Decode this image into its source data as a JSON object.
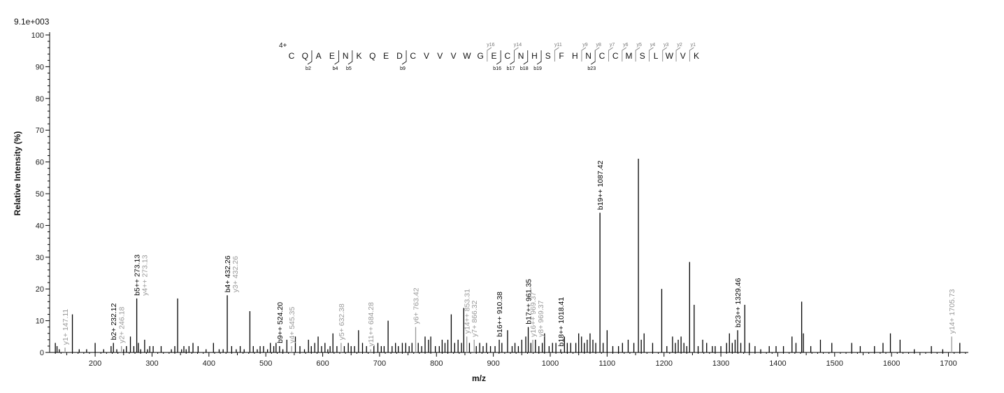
{
  "chart_data": {
    "type": "bar",
    "scale_label": "9.1e+003",
    "xlabel": "m/z",
    "ylabel": "Relative   Intensity (%)",
    "xlim": [
      120,
      1735
    ],
    "ylim": [
      0,
      100
    ],
    "x_ticks": [
      200,
      300,
      400,
      500,
      600,
      700,
      800,
      900,
      1000,
      1100,
      1200,
      1300,
      1400,
      1500,
      1600,
      1700
    ],
    "y_ticks": [
      0,
      10,
      20,
      30,
      40,
      50,
      60,
      70,
      80,
      90,
      100
    ],
    "colors": {
      "annotated_b": "#000000",
      "annotated_y": "#999999",
      "unannotated": "#000000"
    },
    "peaks": [
      [
        130,
        3
      ],
      [
        133,
        2
      ],
      [
        137,
        1
      ],
      [
        147.11,
        1.5
      ],
      [
        160,
        12
      ],
      [
        172,
        1
      ],
      [
        185,
        1
      ],
      [
        200,
        3
      ],
      [
        215,
        1
      ],
      [
        228,
        2
      ],
      [
        232.12,
        3
      ],
      [
        238,
        1
      ],
      [
        246.18,
        2
      ],
      [
        250,
        1
      ],
      [
        255,
        2
      ],
      [
        262,
        5
      ],
      [
        268,
        2
      ],
      [
        273.13,
        17
      ],
      [
        276,
        3
      ],
      [
        280,
        1
      ],
      [
        287,
        4
      ],
      [
        292,
        1
      ],
      [
        296,
        2
      ],
      [
        302,
        2
      ],
      [
        316,
        2
      ],
      [
        334,
        1
      ],
      [
        340,
        2
      ],
      [
        345,
        17
      ],
      [
        352,
        1
      ],
      [
        356,
        2
      ],
      [
        360,
        1
      ],
      [
        365,
        2
      ],
      [
        372,
        3
      ],
      [
        381,
        2
      ],
      [
        395,
        1
      ],
      [
        408,
        3
      ],
      [
        418,
        1
      ],
      [
        425,
        1
      ],
      [
        432.26,
        18
      ],
      [
        440,
        2
      ],
      [
        448,
        1
      ],
      [
        455,
        2
      ],
      [
        462,
        1
      ],
      [
        472,
        13
      ],
      [
        478,
        2
      ],
      [
        485,
        1
      ],
      [
        490,
        2
      ],
      [
        496,
        2
      ],
      [
        503,
        1
      ],
      [
        508,
        3
      ],
      [
        514,
        2
      ],
      [
        518,
        3
      ],
      [
        524.2,
        2
      ],
      [
        530,
        1
      ],
      [
        537,
        4
      ],
      [
        545.35,
        2
      ],
      [
        552,
        5
      ],
      [
        560,
        2
      ],
      [
        568,
        1
      ],
      [
        575,
        4
      ],
      [
        580,
        2
      ],
      [
        586,
        3
      ],
      [
        592,
        5
      ],
      [
        598,
        2
      ],
      [
        604,
        3
      ],
      [
        609,
        1
      ],
      [
        613,
        2
      ],
      [
        618,
        6
      ],
      [
        625,
        2
      ],
      [
        632.38,
        3
      ],
      [
        638,
        2
      ],
      [
        645,
        3
      ],
      [
        650,
        2
      ],
      [
        656,
        2
      ],
      [
        663,
        7
      ],
      [
        670,
        3
      ],
      [
        677,
        2
      ],
      [
        684.28,
        1
      ],
      [
        690,
        2
      ],
      [
        697,
        3
      ],
      [
        703,
        2
      ],
      [
        708,
        2
      ],
      [
        715,
        10
      ],
      [
        722,
        2
      ],
      [
        728,
        3
      ],
      [
        733,
        2
      ],
      [
        740,
        3
      ],
      [
        746,
        3
      ],
      [
        752,
        2
      ],
      [
        757,
        3
      ],
      [
        763.42,
        8
      ],
      [
        768,
        3
      ],
      [
        774,
        2
      ],
      [
        780,
        5
      ],
      [
        786,
        4
      ],
      [
        790,
        5
      ],
      [
        798,
        2
      ],
      [
        805,
        2
      ],
      [
        810,
        4
      ],
      [
        815,
        3
      ],
      [
        820,
        4
      ],
      [
        826,
        12
      ],
      [
        832,
        3
      ],
      [
        838,
        4
      ],
      [
        844,
        3
      ],
      [
        848,
        14
      ],
      [
        853.31,
        5
      ],
      [
        858,
        3
      ],
      [
        866.32,
        4
      ],
      [
        870,
        2
      ],
      [
        876,
        3
      ],
      [
        882,
        2
      ],
      [
        888,
        3
      ],
      [
        895,
        2
      ],
      [
        903,
        2
      ],
      [
        910.38,
        4
      ],
      [
        915,
        3
      ],
      [
        925,
        7
      ],
      [
        933,
        2
      ],
      [
        938,
        3
      ],
      [
        944,
        2
      ],
      [
        950,
        4
      ],
      [
        957,
        5
      ],
      [
        961.35,
        8
      ],
      [
        966,
        3
      ],
      [
        969.37,
        4
      ],
      [
        974,
        4
      ],
      [
        980,
        2
      ],
      [
        986,
        3
      ],
      [
        990,
        6
      ],
      [
        998,
        2
      ],
      [
        1004,
        3
      ],
      [
        1010,
        3
      ],
      [
        1018.41,
        1
      ],
      [
        1025,
        5
      ],
      [
        1030,
        3
      ],
      [
        1036,
        3
      ],
      [
        1045,
        3
      ],
      [
        1050,
        6
      ],
      [
        1055,
        5
      ],
      [
        1060,
        3
      ],
      [
        1065,
        4
      ],
      [
        1070,
        6
      ],
      [
        1075,
        4
      ],
      [
        1080,
        3
      ],
      [
        1087.42,
        44
      ],
      [
        1093,
        3
      ],
      [
        1100,
        7
      ],
      [
        1110,
        2
      ],
      [
        1120,
        2
      ],
      [
        1127,
        3
      ],
      [
        1137,
        4
      ],
      [
        1147,
        3
      ],
      [
        1155,
        61
      ],
      [
        1160,
        4
      ],
      [
        1165,
        6
      ],
      [
        1180,
        3
      ],
      [
        1196,
        20
      ],
      [
        1205,
        2
      ],
      [
        1215,
        5
      ],
      [
        1220,
        3
      ],
      [
        1225,
        4
      ],
      [
        1230,
        5
      ],
      [
        1235,
        3
      ],
      [
        1240,
        2
      ],
      [
        1245,
        28.5
      ],
      [
        1253,
        15
      ],
      [
        1260,
        2
      ],
      [
        1268,
        4
      ],
      [
        1275,
        3
      ],
      [
        1285,
        2
      ],
      [
        1290,
        2
      ],
      [
        1300,
        2
      ],
      [
        1310,
        3
      ],
      [
        1315,
        6
      ],
      [
        1320,
        3
      ],
      [
        1325,
        4
      ],
      [
        1329.46,
        7
      ],
      [
        1335,
        3
      ],
      [
        1342,
        15
      ],
      [
        1350,
        3
      ],
      [
        1360,
        2
      ],
      [
        1370,
        1
      ],
      [
        1385,
        2
      ],
      [
        1397,
        2
      ],
      [
        1410,
        2
      ],
      [
        1425,
        5
      ],
      [
        1432,
        3
      ],
      [
        1442,
        16
      ],
      [
        1445,
        6
      ],
      [
        1458,
        2
      ],
      [
        1475,
        4
      ],
      [
        1495,
        3
      ],
      [
        1530,
        3
      ],
      [
        1545,
        2
      ],
      [
        1570,
        2
      ],
      [
        1585,
        3
      ],
      [
        1598,
        6
      ],
      [
        1615,
        4
      ],
      [
        1640,
        1
      ],
      [
        1670,
        2
      ],
      [
        1690,
        1
      ],
      [
        1705.73,
        5
      ],
      [
        1720,
        3
      ]
    ],
    "annotations": [
      {
        "label": "y1+ 147.11",
        "mz": 147.11,
        "ion": "y"
      },
      {
        "label": "b2+ 232.12",
        "mz": 232.12,
        "ion": "b"
      },
      {
        "label": "y2+ 246.18",
        "mz": 246.18,
        "ion": "y"
      },
      {
        "label": "b5++ 273.13",
        "mz": 273.13,
        "ion": "b"
      },
      {
        "label": "y4++ 273.13",
        "mz": 273.13,
        "ion": "y"
      },
      {
        "label": "b4+ 432.26",
        "mz": 432.26,
        "ion": "b"
      },
      {
        "label": "y3+ 432.26",
        "mz": 432.26,
        "ion": "y"
      },
      {
        "label": "b9++ 524.20",
        "mz": 524.2,
        "ion": "b"
      },
      {
        "label": "y4+ 545.35",
        "mz": 545.35,
        "ion": "y"
      },
      {
        "label": "y5+ 632.38",
        "mz": 632.38,
        "ion": "y"
      },
      {
        "label": "y11++ 684.28",
        "mz": 684.28,
        "ion": "y"
      },
      {
        "label": "y6+ 763.42",
        "mz": 763.42,
        "ion": "y"
      },
      {
        "label": "y14++ 853.31",
        "mz": 853.31,
        "ion": "y"
      },
      {
        "label": "y7+ 866.32",
        "mz": 866.32,
        "ion": "y"
      },
      {
        "label": "b16++ 910.38",
        "mz": 910.38,
        "ion": "b"
      },
      {
        "label": "b17++ 961.35",
        "mz": 961.35,
        "ion": "b"
      },
      {
        "label": "y16++ 969.37",
        "mz": 969.37,
        "ion": "y"
      },
      {
        "label": "y8+ 969.37",
        "mz": 969.37,
        "ion": "y"
      },
      {
        "label": "b18++ 1018.41",
        "mz": 1018.41,
        "ion": "b"
      },
      {
        "label": "b19++ 1087.42",
        "mz": 1087.42,
        "ion": "b"
      },
      {
        "label": "b23++ 1329.46",
        "mz": 1329.46,
        "ion": "b"
      },
      {
        "label": "y14+ 1705.73",
        "mz": 1705.73,
        "ion": "y"
      }
    ],
    "sequence": {
      "charge": "4+",
      "residues": [
        "C",
        "Q",
        "A",
        "E",
        "N",
        "K",
        "Q",
        "E",
        "D",
        "C",
        "V",
        "V",
        "V",
        "W",
        "G",
        "E",
        "C",
        "N",
        "H",
        "S",
        "F",
        "H",
        "N",
        "C",
        "C",
        "M",
        "S",
        "L",
        "W",
        "V",
        "K"
      ],
      "b_ions": [
        {
          "after": 2,
          "label": "b2"
        },
        {
          "after": 4,
          "label": "b4"
        },
        {
          "after": 5,
          "label": "b5"
        },
        {
          "after": 9,
          "label": "b9"
        },
        {
          "after": 16,
          "label": "b16"
        },
        {
          "after": 17,
          "label": "b17"
        },
        {
          "after": 18,
          "label": "b18"
        },
        {
          "after": 19,
          "label": "b19"
        },
        {
          "after": 23,
          "label": "b23"
        }
      ],
      "y_ions": [
        {
          "after": 15,
          "label": "y16"
        },
        {
          "after": 17,
          "label": "y14"
        },
        {
          "after": 20,
          "label": "y11"
        },
        {
          "after": 22,
          "label": "y9"
        },
        {
          "after": 23,
          "label": "y8"
        },
        {
          "after": 24,
          "label": "y7"
        },
        {
          "after": 25,
          "label": "y6"
        },
        {
          "after": 26,
          "label": "y5"
        },
        {
          "after": 27,
          "label": "y4"
        },
        {
          "after": 28,
          "label": "y3"
        },
        {
          "after": 29,
          "label": "y2"
        },
        {
          "after": 30,
          "label": "y1"
        }
      ]
    }
  }
}
